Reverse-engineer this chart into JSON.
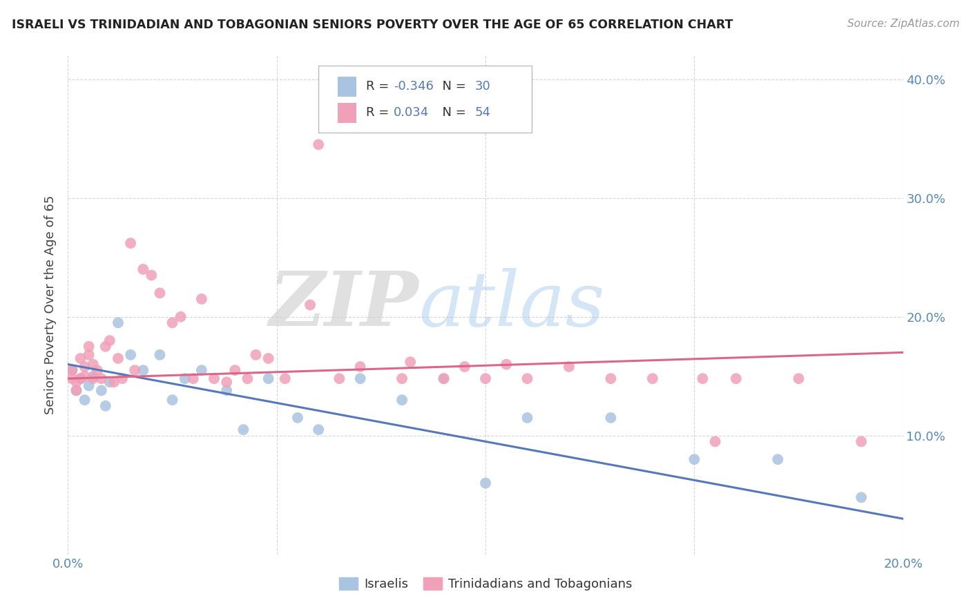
{
  "title": "ISRAELI VS TRINIDADIAN AND TOBAGONIAN SENIORS POVERTY OVER THE AGE OF 65 CORRELATION CHART",
  "source": "Source: ZipAtlas.com",
  "ylabel": "Seniors Poverty Over the Age of 65",
  "xlim": [
    0.0,
    0.2
  ],
  "ylim": [
    0.0,
    0.42
  ],
  "xticks": [
    0.0,
    0.05,
    0.1,
    0.15,
    0.2
  ],
  "xticklabels": [
    "0.0%",
    "",
    "",
    "",
    "20.0%"
  ],
  "yticks": [
    0.0,
    0.1,
    0.2,
    0.3,
    0.4
  ],
  "yticklabels": [
    "",
    "10.0%",
    "20.0%",
    "30.0%",
    "40.0%"
  ],
  "israeli_R": "-0.346",
  "israeli_N": "30",
  "trinidadian_R": "0.034",
  "trinidadian_N": "54",
  "israeli_color": "#a8c4e0",
  "trinidadian_color": "#f0a0b8",
  "israeli_line_color": "#5577bb",
  "trinidadian_line_color": "#dd6688",
  "legend_labels": [
    "Israelis",
    "Trinidadians and Tobagonians"
  ],
  "israeli_x": [
    0.001,
    0.002,
    0.003,
    0.004,
    0.005,
    0.006,
    0.008,
    0.009,
    0.01,
    0.012,
    0.015,
    0.018,
    0.022,
    0.025,
    0.028,
    0.032,
    0.038,
    0.042,
    0.048,
    0.055,
    0.06,
    0.07,
    0.08,
    0.09,
    0.1,
    0.11,
    0.13,
    0.15,
    0.17,
    0.19
  ],
  "israeli_y": [
    0.155,
    0.138,
    0.148,
    0.13,
    0.142,
    0.15,
    0.138,
    0.125,
    0.145,
    0.195,
    0.168,
    0.155,
    0.168,
    0.13,
    0.148,
    0.155,
    0.138,
    0.105,
    0.148,
    0.115,
    0.105,
    0.148,
    0.13,
    0.148,
    0.06,
    0.115,
    0.115,
    0.08,
    0.08,
    0.048
  ],
  "trinidadian_x": [
    0.001,
    0.001,
    0.002,
    0.002,
    0.003,
    0.003,
    0.004,
    0.004,
    0.005,
    0.005,
    0.006,
    0.006,
    0.007,
    0.008,
    0.009,
    0.01,
    0.011,
    0.012,
    0.013,
    0.015,
    0.016,
    0.018,
    0.02,
    0.022,
    0.025,
    0.027,
    0.03,
    0.032,
    0.035,
    0.038,
    0.04,
    0.043,
    0.045,
    0.048,
    0.052,
    0.058,
    0.06,
    0.065,
    0.07,
    0.08,
    0.082,
    0.09,
    0.095,
    0.1,
    0.105,
    0.11,
    0.12,
    0.13,
    0.14,
    0.152,
    0.155,
    0.16,
    0.175,
    0.19
  ],
  "trinidadian_y": [
    0.155,
    0.148,
    0.145,
    0.138,
    0.148,
    0.165,
    0.15,
    0.158,
    0.168,
    0.175,
    0.148,
    0.16,
    0.155,
    0.148,
    0.175,
    0.18,
    0.145,
    0.165,
    0.148,
    0.262,
    0.155,
    0.24,
    0.235,
    0.22,
    0.195,
    0.2,
    0.148,
    0.215,
    0.148,
    0.145,
    0.155,
    0.148,
    0.168,
    0.165,
    0.148,
    0.21,
    0.345,
    0.148,
    0.158,
    0.148,
    0.162,
    0.148,
    0.158,
    0.148,
    0.16,
    0.148,
    0.158,
    0.148,
    0.148,
    0.148,
    0.095,
    0.148,
    0.148,
    0.095
  ]
}
